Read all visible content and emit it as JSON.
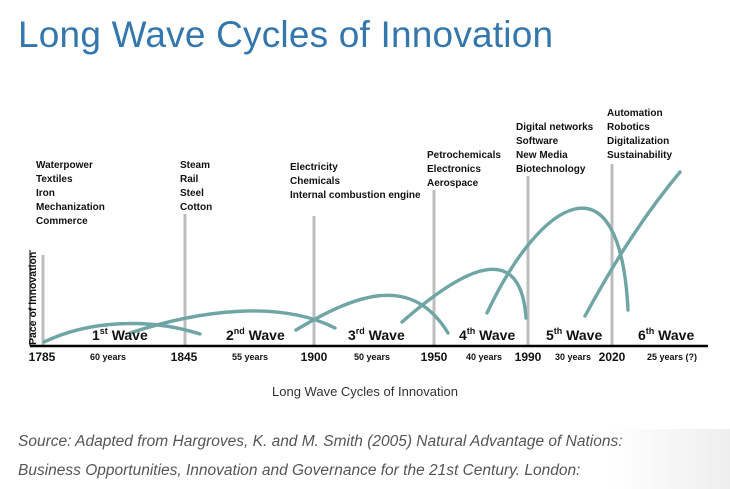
{
  "title": "Long Wave Cycles of Innovation",
  "chart_data": {
    "type": "line",
    "ylabel": "Pace of innovation",
    "caption": "Long Wave Cycles of Innovation",
    "years": [
      "1785",
      "1845",
      "1900",
      "1950",
      "1990",
      "2020"
    ],
    "waves": [
      {
        "name": "1st Wave",
        "sup": "st",
        "base": "1",
        "label": "Wave",
        "duration": "60 years"
      },
      {
        "name": "2nd Wave",
        "sup": "nd",
        "base": "2",
        "label": "Wave",
        "duration": "55 years"
      },
      {
        "name": "3rd Wave",
        "sup": "rd",
        "base": "3",
        "label": "Wave",
        "duration": "50 years"
      },
      {
        "name": "4th Wave",
        "sup": "th",
        "base": "4",
        "label": "Wave",
        "duration": "40 years"
      },
      {
        "name": "5th Wave",
        "sup": "th",
        "base": "5",
        "label": "Wave",
        "duration": "30 years"
      },
      {
        "name": "6th Wave",
        "sup": "th",
        "base": "6",
        "label": "Wave",
        "duration": "25 years (?)"
      }
    ],
    "innovations": [
      [
        "Waterpower",
        "Textiles",
        "Iron",
        "Mechanization",
        "Commerce"
      ],
      [
        "Steam",
        "Rail",
        "Steel",
        "Cotton"
      ],
      [
        "Electricity",
        "Chemicals",
        "Internal combustion engine"
      ],
      [
        "Petrochemicals",
        "Electronics",
        "Aerospace"
      ],
      [
        "Digital networks",
        "Software",
        "New Media",
        "Biotechnology"
      ],
      [
        "Automation",
        "Robotics",
        "Digitalization",
        "Sustainability"
      ]
    ]
  },
  "source": {
    "line1": "Source: Adapted from Hargroves, K. and M. Smith (2005) Natural Advantage of Nations:",
    "line2": "Business Opportunities, Innovation and Governance for the 21st Century. London:"
  },
  "colors": {
    "title": "#3377ad",
    "curve": "#6fa5a5",
    "marker": "#bdbdbd",
    "axis": "#000000"
  }
}
